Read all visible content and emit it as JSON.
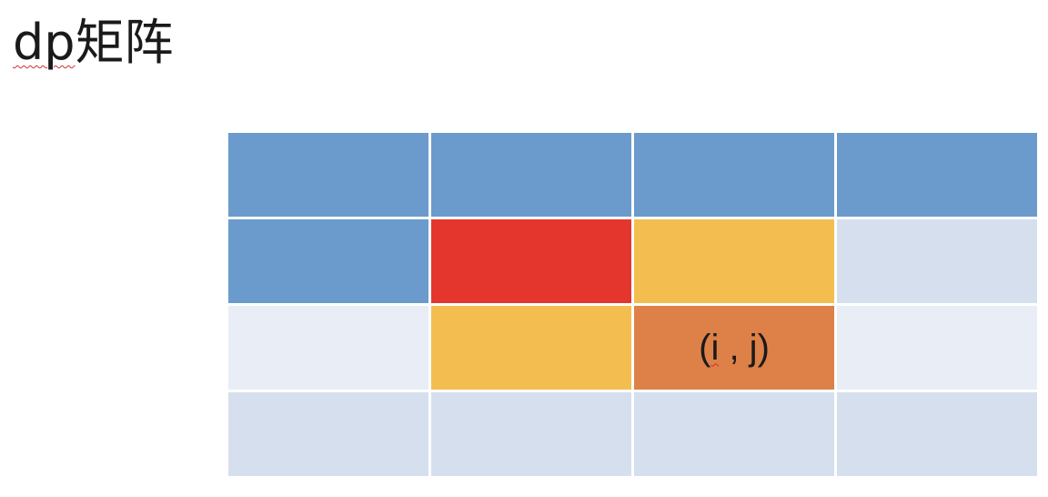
{
  "title": {
    "latin": "dp",
    "cjk": "矩阵"
  },
  "colors": {
    "header_blue": "#6a9bcc",
    "red": "#e5362d",
    "yellow": "#f3be4f",
    "orange": "#de8148",
    "light_row_a": "#d6dfee",
    "light_row_b": "#e9edf5"
  },
  "matrix": {
    "rows": 4,
    "cols": 4,
    "target_cell": {
      "open": "(",
      "i": "i",
      "sep": " , ",
      "j": "j",
      "close": ")"
    }
  }
}
